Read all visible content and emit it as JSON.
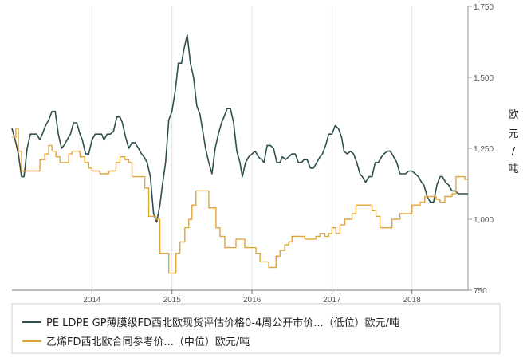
{
  "chart_data": {
    "type": "line",
    "xlabel": "",
    "ylabel": "欧元/吨",
    "ylabel_chars": [
      "欧",
      "元",
      "/",
      "吨"
    ],
    "ylim": [
      750,
      1750
    ],
    "yticks": [
      750,
      1000,
      1250,
      1500,
      1750
    ],
    "ytick_labels": [
      "750",
      "1,000",
      "1,250",
      "1,500",
      "1,750"
    ],
    "xlim": [
      2013.0,
      2018.7
    ],
    "xticks": [
      2014,
      2015,
      2016,
      2017,
      2018
    ],
    "xtick_labels": [
      "2014",
      "2015",
      "2016",
      "2017",
      "2018"
    ],
    "grid": "vertical",
    "legend_position": "bottom",
    "series": [
      {
        "name": "PE LDPE GP薄膜级FD西北欧现货评估价格0-4周公开市价...（低位）欧元/吨",
        "color": "#2f4f4f",
        "style": "line",
        "x": [
          2013.0,
          2013.04,
          2013.08,
          2013.12,
          2013.15,
          2013.19,
          2013.23,
          2013.27,
          2013.31,
          2013.35,
          2013.38,
          2013.42,
          2013.46,
          2013.5,
          2013.54,
          2013.58,
          2013.62,
          2013.65,
          2013.69,
          2013.73,
          2013.77,
          2013.81,
          2013.85,
          2013.88,
          2013.92,
          2013.96,
          2014.0,
          2014.04,
          2014.08,
          2014.12,
          2014.15,
          2014.19,
          2014.23,
          2014.27,
          2014.31,
          2014.35,
          2014.38,
          2014.42,
          2014.46,
          2014.5,
          2014.54,
          2014.58,
          2014.62,
          2014.65,
          2014.69,
          2014.73,
          2014.77,
          2014.81,
          2014.85,
          2014.88,
          2014.92,
          2014.96,
          2015.0,
          2015.04,
          2015.08,
          2015.12,
          2015.15,
          2015.19,
          2015.23,
          2015.27,
          2015.31,
          2015.35,
          2015.38,
          2015.42,
          2015.46,
          2015.5,
          2015.54,
          2015.58,
          2015.62,
          2015.65,
          2015.69,
          2015.73,
          2015.77,
          2015.81,
          2015.85,
          2015.88,
          2015.92,
          2015.96,
          2016.0,
          2016.04,
          2016.08,
          2016.12,
          2016.15,
          2016.19,
          2016.23,
          2016.27,
          2016.31,
          2016.35,
          2016.38,
          2016.42,
          2016.46,
          2016.5,
          2016.54,
          2016.58,
          2016.62,
          2016.65,
          2016.69,
          2016.73,
          2016.77,
          2016.81,
          2016.85,
          2016.88,
          2016.92,
          2016.96,
          2017.0,
          2017.04,
          2017.08,
          2017.12,
          2017.15,
          2017.19,
          2017.23,
          2017.27,
          2017.31,
          2017.35,
          2017.38,
          2017.42,
          2017.46,
          2017.5,
          2017.54,
          2017.58,
          2017.62,
          2017.65,
          2017.69,
          2017.73,
          2017.77,
          2017.81,
          2017.85,
          2017.88,
          2017.92,
          2017.96,
          2018.0,
          2018.04,
          2018.08,
          2018.12,
          2018.15,
          2018.19,
          2018.23,
          2018.27,
          2018.31,
          2018.35,
          2018.38,
          2018.42,
          2018.46,
          2018.5,
          2018.54,
          2018.58,
          2018.62,
          2018.65,
          2018.7
        ],
        "y": [
          1320,
          1280,
          1230,
          1150,
          1150,
          1250,
          1300,
          1300,
          1300,
          1280,
          1300,
          1330,
          1350,
          1380,
          1380,
          1300,
          1250,
          1260,
          1280,
          1300,
          1340,
          1340,
          1300,
          1280,
          1230,
          1230,
          1280,
          1300,
          1300,
          1300,
          1280,
          1300,
          1300,
          1310,
          1360,
          1360,
          1340,
          1290,
          1250,
          1270,
          1270,
          1250,
          1230,
          1220,
          1200,
          1150,
          1020,
          990,
          1050,
          1120,
          1200,
          1350,
          1380,
          1450,
          1550,
          1550,
          1600,
          1650,
          1550,
          1500,
          1400,
          1370,
          1320,
          1250,
          1200,
          1160,
          1250,
          1300,
          1340,
          1360,
          1390,
          1390,
          1340,
          1240,
          1200,
          1150,
          1200,
          1220,
          1230,
          1240,
          1220,
          1210,
          1200,
          1260,
          1260,
          1250,
          1200,
          1200,
          1220,
          1210,
          1220,
          1230,
          1230,
          1200,
          1200,
          1210,
          1210,
          1180,
          1180,
          1200,
          1220,
          1230,
          1260,
          1300,
          1300,
          1330,
          1320,
          1290,
          1240,
          1230,
          1240,
          1230,
          1200,
          1160,
          1150,
          1130,
          1150,
          1150,
          1200,
          1200,
          1220,
          1230,
          1240,
          1240,
          1220,
          1200,
          1160,
          1160,
          1160,
          1170,
          1170,
          1160,
          1150,
          1130,
          1120,
          1080,
          1060,
          1060,
          1120,
          1150,
          1150,
          1130,
          1120,
          1100,
          1100,
          1090,
          1090,
          1090,
          1090
        ]
      },
      {
        "name": "乙烯FD西北欧合同参考价...（中位）欧元/吨",
        "color": "#e0a53a",
        "style": "step",
        "x": [
          2013.0,
          2013.05,
          2013.08,
          2013.12,
          2013.16,
          2013.2,
          2013.25,
          2013.3,
          2013.35,
          2013.41,
          2013.46,
          2013.5,
          2013.55,
          2013.6,
          2013.66,
          2013.71,
          2013.75,
          2013.8,
          2013.85,
          2013.91,
          2013.96,
          2014.0,
          2014.05,
          2014.1,
          2014.16,
          2014.21,
          2014.25,
          2014.3,
          2014.35,
          2014.41,
          2014.46,
          2014.5,
          2014.55,
          2014.6,
          2014.66,
          2014.71,
          2014.75,
          2014.8,
          2014.85,
          2014.91,
          2014.96,
          2015.0,
          2015.05,
          2015.1,
          2015.16,
          2015.21,
          2015.25,
          2015.3,
          2015.35,
          2015.41,
          2015.46,
          2015.5,
          2015.55,
          2015.6,
          2015.66,
          2015.71,
          2015.75,
          2015.8,
          2015.85,
          2015.91,
          2015.96,
          2016.0,
          2016.05,
          2016.1,
          2016.16,
          2016.21,
          2016.25,
          2016.3,
          2016.35,
          2016.41,
          2016.46,
          2016.5,
          2016.55,
          2016.6,
          2016.66,
          2016.71,
          2016.75,
          2016.8,
          2016.85,
          2016.91,
          2016.96,
          2017.0,
          2017.05,
          2017.1,
          2017.16,
          2017.21,
          2017.25,
          2017.3,
          2017.35,
          2017.41,
          2017.46,
          2017.5,
          2017.55,
          2017.6,
          2017.66,
          2017.71,
          2017.75,
          2017.8,
          2017.85,
          2017.91,
          2017.96,
          2018.0,
          2018.05,
          2018.1,
          2018.16,
          2018.21,
          2018.25,
          2018.3,
          2018.35,
          2018.41,
          2018.46,
          2018.5,
          2018.55,
          2018.6,
          2018.66,
          2018.7
        ],
        "y": [
          1290,
          1320,
          1240,
          1170,
          1170,
          1170,
          1170,
          1170,
          1210,
          1230,
          1260,
          1240,
          1220,
          1200,
          1200,
          1230,
          1240,
          1240,
          1220,
          1200,
          1180,
          1170,
          1170,
          1160,
          1160,
          1170,
          1170,
          1200,
          1220,
          1210,
          1200,
          1150,
          1150,
          1150,
          1110,
          1010,
          1010,
          1000,
          880,
          880,
          810,
          810,
          880,
          920,
          970,
          1000,
          1050,
          1100,
          1100,
          1100,
          1040,
          1040,
          970,
          940,
          900,
          900,
          900,
          930,
          930,
          900,
          900,
          900,
          880,
          850,
          850,
          830,
          830,
          870,
          890,
          910,
          920,
          940,
          940,
          940,
          930,
          930,
          930,
          940,
          950,
          940,
          950,
          970,
          950,
          980,
          1000,
          1000,
          1020,
          1050,
          1050,
          1050,
          1050,
          1030,
          1010,
          970,
          970,
          970,
          1000,
          1000,
          1020,
          1020,
          1020,
          1050,
          1050,
          1060,
          1080,
          1080,
          1080,
          1070,
          1060,
          1080,
          1080,
          1090,
          1150,
          1150,
          1140,
          1140
        ]
      }
    ]
  },
  "legend": {
    "items": [
      {
        "label": "PE LDPE GP薄膜级FD西北欧现货评估价格0-4周公开市价...（低位）欧元/吨",
        "color": "#2f4f4f"
      },
      {
        "label": "乙烯FD西北欧合同参考价...（中位）欧元/吨",
        "color": "#e0a53a"
      }
    ]
  }
}
